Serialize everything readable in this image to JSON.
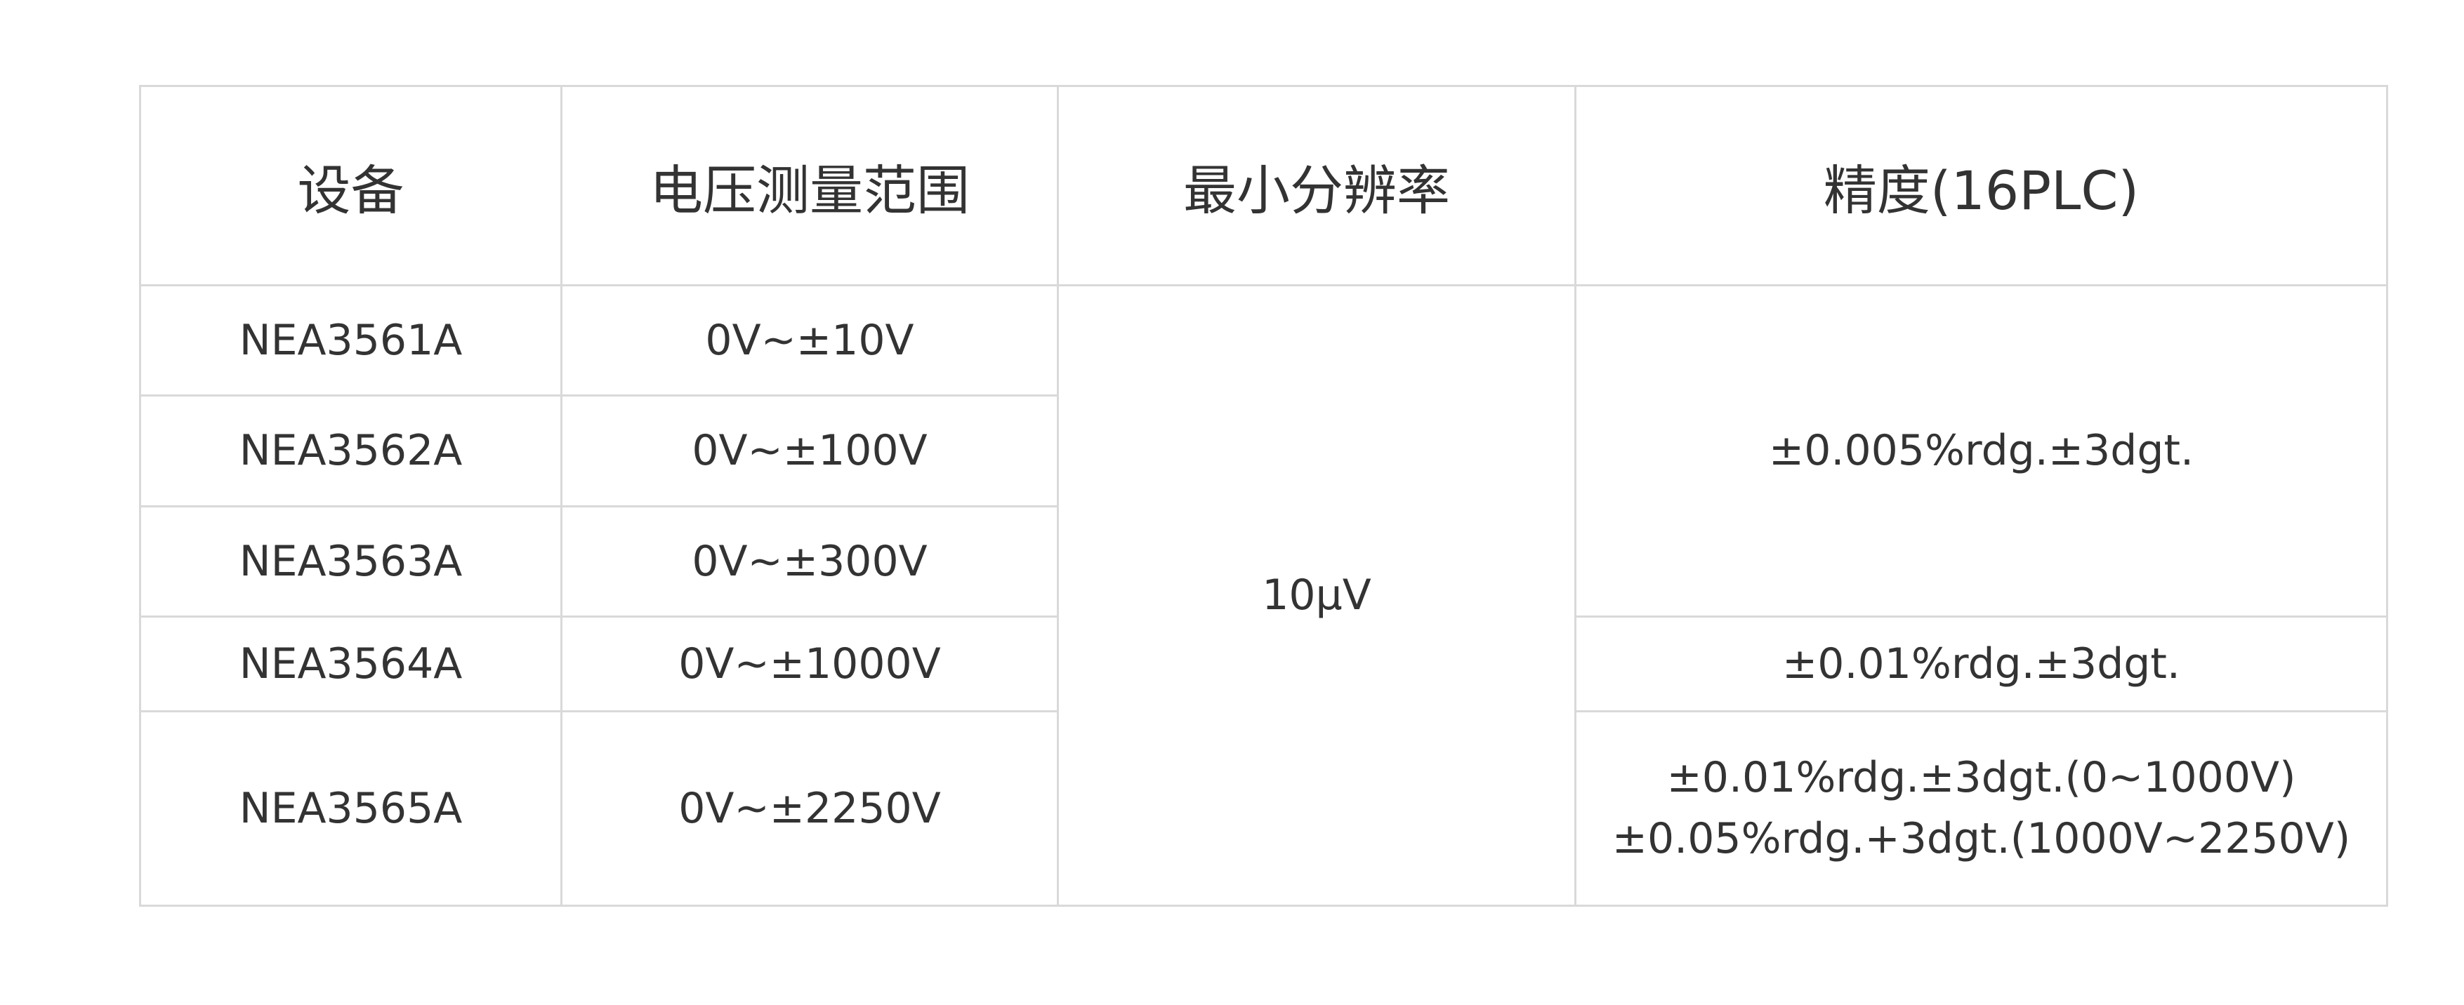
{
  "table": {
    "headers": [
      "设备",
      "电压测量范围",
      "最小分辨率",
      "精度(16PLC)"
    ],
    "rows": [
      {
        "device": "NEA3561A",
        "range": "0V~±10V"
      },
      {
        "device": "NEA3562A",
        "range": "0V~±100V"
      },
      {
        "device": "NEA3563A",
        "range": "0V~±300V"
      },
      {
        "device": "NEA3564A",
        "range": "0V~±1000V"
      },
      {
        "device": "NEA3565A",
        "range": "0V~±2250V"
      }
    ],
    "resolution": "10μV",
    "accuracy": {
      "group1": "±0.005%rdg.±3dgt.",
      "group2": "±0.01%rdg.±3dgt.",
      "group3_line1": "±0.01%rdg.±3dgt.(0~1000V)",
      "group3_line2": "±0.05%rdg.+3dgt.(1000V~2250V)"
    }
  }
}
